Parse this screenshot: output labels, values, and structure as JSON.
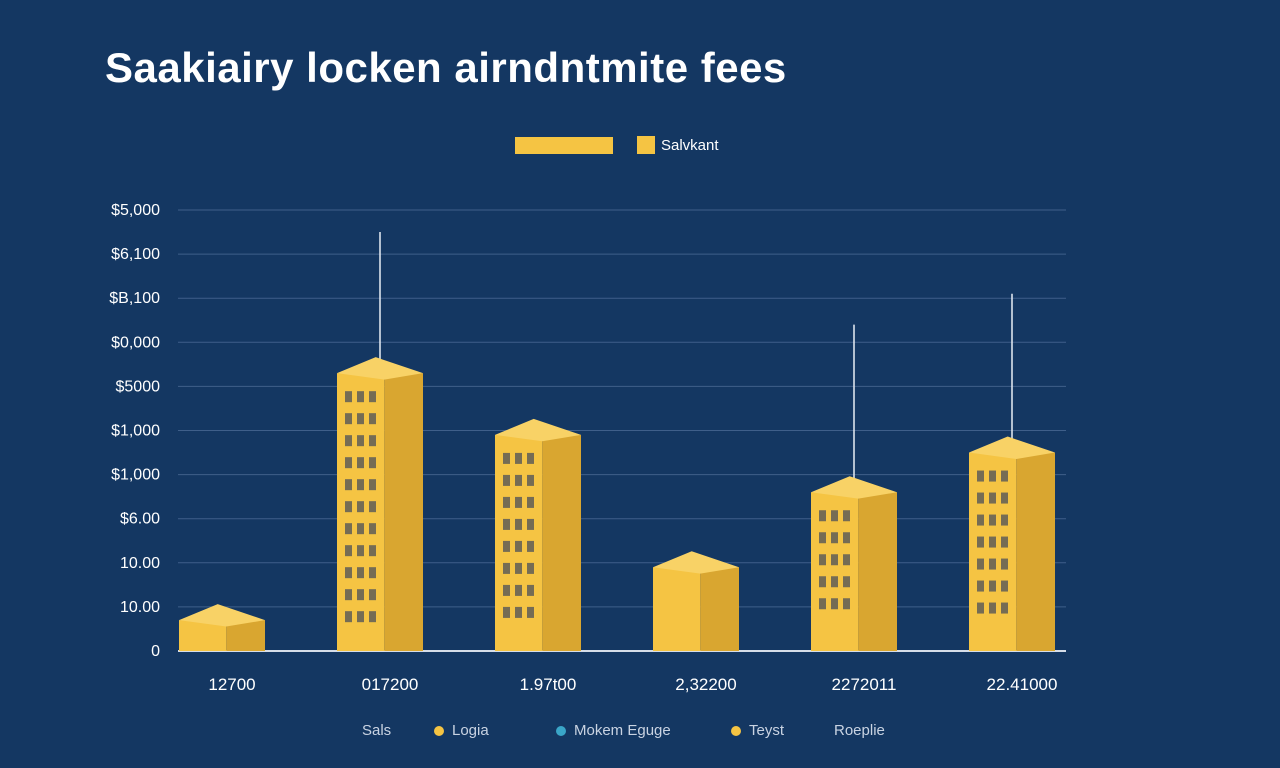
{
  "colors": {
    "background": "#143762",
    "bar": "#f5c443",
    "bar_side": "#d9a630",
    "bar_top": "#f8d266",
    "grid": "#3f5f8a",
    "axis": "#d6dde8",
    "text": "#ffffff",
    "muted": "#c9d3e2",
    "accent_teal": "#3aa6c8"
  },
  "legend_top": {
    "label": "Salvkant"
  },
  "legend_bottom": [
    {
      "label": "Sals",
      "dot": ""
    },
    {
      "label": "Logia",
      "dot": "#f5c443"
    },
    {
      "label": "Mokem Eguge",
      "dot": "#3aa6c8"
    },
    {
      "label": "Teyst",
      "dot": "#f5c443"
    },
    {
      "label": "Roeplie",
      "dot": ""
    }
  ],
  "chart_data": {
    "type": "bar",
    "title": "Saakiairy locken airndntmite fees",
    "xlabel": "",
    "ylabel": "",
    "grid": true,
    "legend_position": "top-center",
    "ytick_labels": [
      "0",
      "10.00",
      "10.00",
      "$6.00",
      "$1,000",
      "$1,000",
      "$5000",
      "$0,000",
      "$B,100",
      "$6,100",
      "$5,000"
    ],
    "ylim": [
      0,
      10
    ],
    "categories": [
      "12700",
      "017200",
      "1.97t00",
      "2,32200",
      "2272011",
      "22.41000"
    ],
    "series": [
      {
        "values": [
          0.7,
          6.3,
          4.9,
          1.9,
          3.6,
          4.5
        ]
      }
    ],
    "whisker_tops": [
      null,
      9.5,
      null,
      null,
      7.4,
      8.1
    ]
  }
}
